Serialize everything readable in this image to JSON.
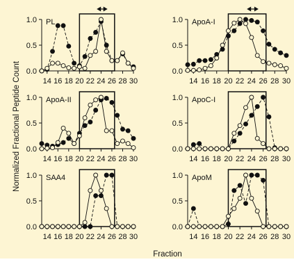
{
  "figure": {
    "xlabel": "Fraction",
    "ylabel": "Normalized Fractional Peptide Count",
    "colors": {
      "background": "#fdf5d3",
      "ink": "#111111"
    }
  },
  "legend_note": "filled circles and dashed line = one series; open circles and solid line = the other series (no legend printed)",
  "chart_data": [
    {
      "type": "line",
      "title": "PL",
      "xlim": [
        13,
        30
      ],
      "ylim": [
        0,
        1.0
      ],
      "xticks": [
        14,
        16,
        18,
        20,
        22,
        24,
        26,
        28,
        30
      ],
      "yticks": [
        "0.0",
        "0.5",
        "1.0"
      ],
      "highlight_box": [
        20,
        26.5
      ],
      "arrow": [
        23.2,
        25.2
      ],
      "series": [
        {
          "marker": "filled",
          "line": "dashed",
          "x": [
            13,
            14,
            15,
            16,
            17,
            18,
            19,
            20,
            21,
            22,
            23,
            24,
            25,
            26,
            27,
            28,
            29,
            30
          ],
          "y": [
            0,
            0.03,
            0.38,
            0.88,
            0.88,
            0.48,
            0.15,
            0.1,
            0.28,
            0.63,
            0.75,
            0.96,
            0.5,
            0.2,
            0.2,
            0.33,
            0.15,
            0.08
          ]
        },
        {
          "marker": "open",
          "line": "solid",
          "x": [
            13,
            14,
            15,
            16,
            17,
            18,
            19,
            20,
            21,
            22,
            23,
            24,
            25,
            26,
            27,
            28,
            29,
            30
          ],
          "y": [
            0,
            0.05,
            0.15,
            0.15,
            0.1,
            0.06,
            0.05,
            0.08,
            0.05,
            0.3,
            0.38,
            1.0,
            0.38,
            0.2,
            0.2,
            0.35,
            0.15,
            0.05
          ]
        }
      ]
    },
    {
      "type": "line",
      "title": "ApoA-I",
      "xlim": [
        13,
        30
      ],
      "ylim": [
        0,
        1.0
      ],
      "xticks": [
        14,
        16,
        18,
        20,
        22,
        24,
        26,
        28,
        30
      ],
      "yticks": [
        "0.0",
        "0.5",
        "1.0"
      ],
      "highlight_box": [
        20,
        26.5
      ],
      "arrow": [
        23.2,
        25.2
      ],
      "series": [
        {
          "marker": "filled",
          "line": "dashed",
          "x": [
            13,
            14,
            15,
            16,
            17,
            18,
            19,
            20,
            21,
            22,
            23,
            24,
            25,
            26,
            27,
            28,
            29,
            30
          ],
          "y": [
            0.12,
            0.13,
            0.2,
            0.2,
            0.22,
            0.32,
            0.42,
            0.68,
            0.78,
            0.92,
            1.0,
            0.98,
            0.95,
            0.78,
            0.52,
            0.42,
            0.35,
            0.3
          ]
        },
        {
          "marker": "open",
          "line": "solid",
          "x": [
            13,
            14,
            15,
            16,
            17,
            18,
            19,
            20,
            21,
            22,
            23,
            24,
            25,
            26,
            27,
            28,
            29,
            30
          ],
          "y": [
            0.01,
            0.01,
            0.02,
            0.05,
            0.1,
            0.25,
            0.5,
            0.78,
            0.93,
            1.0,
            0.92,
            0.65,
            0.3,
            0.18,
            0.15,
            0.12,
            0.1,
            0.05
          ]
        }
      ]
    },
    {
      "type": "line",
      "title": "ApoA-II",
      "xlim": [
        13,
        30
      ],
      "ylim": [
        0,
        1.0
      ],
      "xticks": [
        14,
        16,
        18,
        20,
        22,
        24,
        26,
        28,
        30
      ],
      "yticks": [
        "0.0",
        "0.5",
        "1.0"
      ],
      "highlight_box": [
        20,
        26.5
      ],
      "series": [
        {
          "marker": "filled",
          "line": "dashed",
          "x": [
            13,
            14,
            15,
            16,
            17,
            18,
            19,
            20,
            21,
            22,
            23,
            24,
            25,
            26,
            27,
            28,
            29,
            30
          ],
          "y": [
            0.1,
            0.07,
            0.05,
            0.08,
            0.12,
            0.2,
            0.1,
            0.3,
            0.45,
            0.52,
            0.75,
            0.95,
            0.98,
            0.9,
            0.65,
            0.38,
            0.35,
            0.2
          ]
        },
        {
          "marker": "open",
          "line": "solid",
          "x": [
            13,
            14,
            15,
            16,
            17,
            18,
            19,
            20,
            21,
            22,
            23,
            24,
            25,
            26,
            27,
            28,
            29,
            30
          ],
          "y": [
            0,
            0.01,
            0.02,
            0.12,
            0.4,
            0.3,
            0.1,
            0.25,
            0.6,
            0.85,
            0.95,
            1.0,
            0.35,
            0.35,
            0.1,
            0.15,
            0.1,
            0.02
          ]
        }
      ]
    },
    {
      "type": "line",
      "title": "ApoC-I",
      "xlim": [
        13,
        30
      ],
      "ylim": [
        0,
        1.0
      ],
      "xticks": [
        14,
        16,
        18,
        20,
        22,
        24,
        26,
        28,
        30
      ],
      "yticks": [
        "0.0",
        "0.5",
        "1.0"
      ],
      "highlight_box": [
        20,
        26.5
      ],
      "series": [
        {
          "marker": "filled",
          "line": "dashed",
          "x": [
            13,
            14,
            15,
            16,
            17,
            18,
            19,
            20,
            21,
            22,
            23,
            24,
            25,
            26,
            27,
            28,
            29,
            30
          ],
          "y": [
            0,
            0.08,
            0.1,
            0,
            0,
            0,
            0,
            0,
            0.15,
            0.3,
            0.48,
            0.65,
            0.82,
            1.0,
            0.62,
            0.02,
            0,
            0
          ]
        },
        {
          "marker": "open",
          "line": "solid",
          "x": [
            13,
            14,
            15,
            16,
            17,
            18,
            19,
            20,
            21,
            22,
            23,
            24,
            25,
            26,
            27,
            28,
            29,
            30
          ],
          "y": [
            0,
            0,
            0,
            0,
            0,
            0,
            0,
            0,
            0.3,
            0.45,
            0.8,
            1.0,
            0.2,
            0.1,
            0,
            0,
            0,
            0
          ]
        }
      ]
    },
    {
      "type": "line",
      "title": "SAA4",
      "xlim": [
        13,
        30
      ],
      "ylim": [
        0,
        1.0
      ],
      "xticks": [
        14,
        16,
        18,
        20,
        22,
        24,
        26,
        28,
        30
      ],
      "yticks": [
        "0.0",
        "0.5",
        "1.0"
      ],
      "highlight_box": [
        20,
        26.5
      ],
      "series": [
        {
          "marker": "filled",
          "line": "dashed",
          "x": [
            13,
            14,
            15,
            16,
            17,
            18,
            19,
            20,
            21,
            22,
            23,
            24,
            25,
            26,
            27,
            28,
            29,
            30
          ],
          "y": [
            0,
            0,
            0,
            0,
            0,
            0,
            0,
            0,
            0,
            0,
            0.6,
            0.6,
            1.0,
            1.0,
            0,
            0,
            0,
            0
          ]
        },
        {
          "marker": "open",
          "line": "solid",
          "x": [
            13,
            14,
            15,
            16,
            17,
            18,
            19,
            20,
            21,
            22,
            23,
            24,
            25,
            26,
            27,
            28,
            29,
            30
          ],
          "y": [
            0,
            0,
            0,
            0,
            0,
            0,
            0,
            0,
            0.08,
            0.7,
            1.0,
            0.7,
            0.35,
            0,
            0,
            0,
            0,
            0
          ]
        }
      ]
    },
    {
      "type": "line",
      "title": "ApoM",
      "xlim": [
        13,
        30
      ],
      "ylim": [
        0,
        1.0
      ],
      "xticks": [
        14,
        16,
        18,
        20,
        22,
        24,
        26,
        28,
        30
      ],
      "yticks": [
        "0.0",
        "0.5",
        "1.0"
      ],
      "highlight_box": [
        20,
        26.5
      ],
      "series": [
        {
          "marker": "filled",
          "line": "dashed",
          "x": [
            13,
            14,
            15,
            16,
            17,
            18,
            19,
            20,
            21,
            22,
            23,
            24,
            25,
            26,
            27,
            28,
            29,
            30
          ],
          "y": [
            0,
            0.35,
            0,
            0,
            0,
            0,
            0,
            0.05,
            0.7,
            0.8,
            0.45,
            1.0,
            1.0,
            0.9,
            0,
            0,
            0,
            0
          ]
        },
        {
          "marker": "open",
          "line": "solid",
          "x": [
            13,
            14,
            15,
            16,
            17,
            18,
            19,
            20,
            21,
            22,
            23,
            24,
            25,
            26,
            27,
            28,
            29,
            30
          ],
          "y": [
            0,
            0,
            0,
            0,
            0,
            0,
            0,
            0.2,
            0.35,
            0.55,
            1.0,
            0.55,
            0.3,
            0,
            0,
            0,
            0,
            0
          ]
        }
      ]
    }
  ]
}
